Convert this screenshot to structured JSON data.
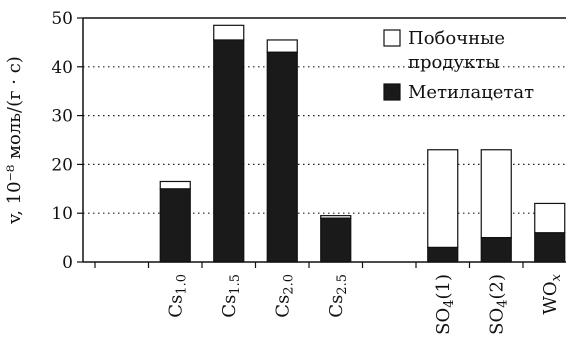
{
  "colors": {
    "methyl_acetate": "#1a1a1a",
    "byproducts": "#ffffff",
    "axis": "#111111",
    "gridline": "#222222"
  },
  "chart_data": {
    "type": "bar",
    "stacked": true,
    "ylabel": "v, 10⁻⁸ моль/(г · с)",
    "ylim": [
      0,
      50
    ],
    "yticks": [
      0,
      10,
      20,
      30,
      40,
      50
    ],
    "grid": "horizontal dotted lines at 10, 20, 30, 40",
    "legend_position": "top-right",
    "categories": [
      {
        "base": "",
        "sub": "",
        "suffix": ""
      },
      {
        "base": "Cs",
        "sub": "1.0",
        "suffix": ""
      },
      {
        "base": "Cs",
        "sub": "1.5",
        "suffix": ""
      },
      {
        "base": "Cs",
        "sub": "2.0",
        "suffix": ""
      },
      {
        "base": "Cs",
        "sub": "2.5",
        "suffix": ""
      },
      {
        "base": "",
        "sub": "",
        "suffix": ""
      },
      {
        "base": "SO",
        "sub": "4",
        "suffix": "(1)"
      },
      {
        "base": "SO",
        "sub": "4",
        "suffix": "(2)"
      },
      {
        "base": "WO",
        "sub": "x",
        "suffix": ""
      }
    ],
    "series": [
      {
        "name": "Метилацетат",
        "values": [
          null,
          15,
          45.5,
          43,
          9,
          null,
          3,
          5,
          6
        ]
      },
      {
        "name": "Побочные продукты",
        "values": [
          null,
          1.5,
          3,
          2.5,
          0.5,
          null,
          20,
          18,
          6
        ]
      }
    ],
    "legend": [
      {
        "line1": "Побочные",
        "line2": "продукты",
        "series": 1
      },
      {
        "line1": "Метилацетат",
        "line2": "",
        "series": 0
      }
    ]
  }
}
